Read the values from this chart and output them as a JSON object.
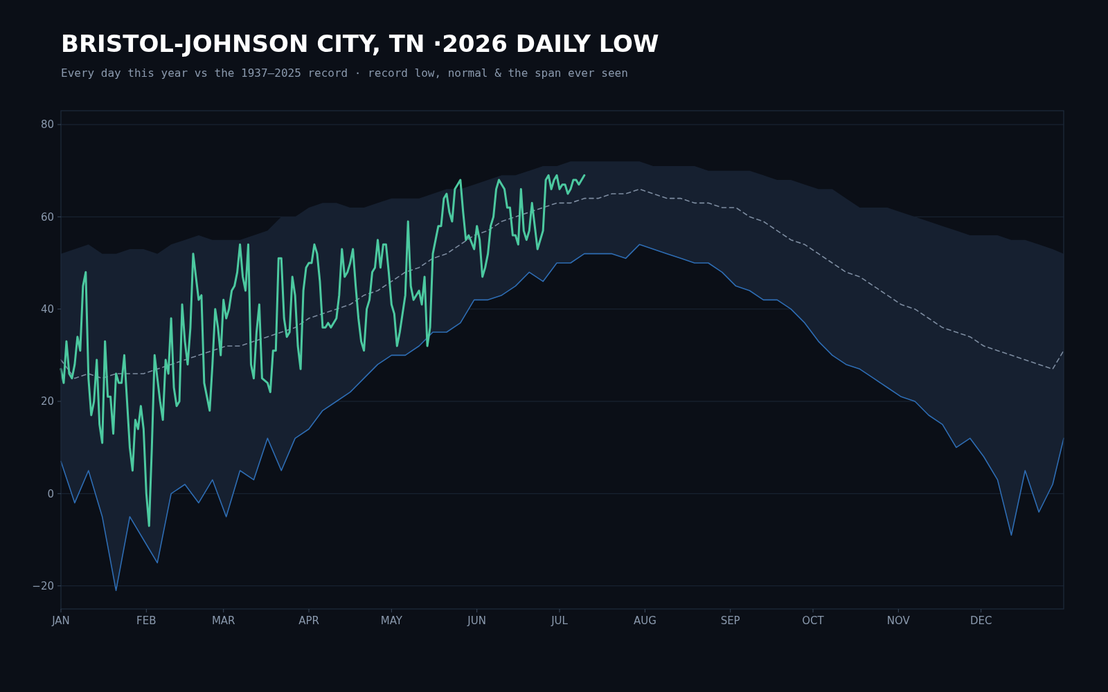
{
  "chart_data": {
    "type": "line",
    "title": "BRISTOL-JOHNSON CITY, TN ·2026 DAILY LOW",
    "subtitle": "Every day this year vs the 1937–2025 record · record low, normal & the span ever seen",
    "x": [
      "--01-01",
      "--01-06",
      "--01-11",
      "--01-16",
      "--01-21",
      "--01-26",
      "--01-31",
      "--02-05",
      "--02-10",
      "--02-15",
      "--02-20",
      "--02-25",
      "--03-02",
      "--03-07",
      "--03-12",
      "--03-17",
      "--03-22",
      "--03-27",
      "--04-01",
      "--04-06",
      "--04-11",
      "--04-16",
      "--04-21",
      "--04-26",
      "--05-01",
      "--05-06",
      "--05-11",
      "--05-16",
      "--05-21",
      "--05-26",
      "--05-31",
      "--06-05",
      "--06-10",
      "--06-15",
      "--06-20",
      "--06-25",
      "--06-30",
      "--07-05",
      "--07-10",
      "--07-15",
      "--07-20",
      "--07-25",
      "--07-30",
      "--08-04",
      "--08-09",
      "--08-14",
      "--08-19",
      "--08-24",
      "--08-29",
      "--09-03",
      "--09-08",
      "--09-13",
      "--09-18",
      "--09-23",
      "--09-28",
      "--10-03",
      "--10-08",
      "--10-13",
      "--10-18",
      "--10-23",
      "--10-28",
      "--11-02",
      "--11-07",
      "--11-12",
      "--11-17",
      "--11-22",
      "--11-27",
      "--12-02",
      "--12-07",
      "--12-12",
      "--12-17",
      "--12-22",
      "--12-27",
      "--12-31"
    ],
    "xlim": [
      "--01-01",
      "--12-31"
    ],
    "xticks": [
      {
        "value": "--01-01",
        "label": "JAN"
      },
      {
        "value": "--02-01",
        "label": "FEB"
      },
      {
        "value": "--03-01",
        "label": "MAR"
      },
      {
        "value": "--04-01",
        "label": "APR"
      },
      {
        "value": "--05-01",
        "label": "MAY"
      },
      {
        "value": "--06-01",
        "label": "JUN"
      },
      {
        "value": "--07-01",
        "label": "JUL"
      },
      {
        "value": "--08-01",
        "label": "AUG"
      },
      {
        "value": "--09-01",
        "label": "SEP"
      },
      {
        "value": "--10-01",
        "label": "OCT"
      },
      {
        "value": "--11-01",
        "label": "NOV"
      },
      {
        "value": "--12-01",
        "label": "DEC"
      }
    ],
    "ylim": [
      -25,
      83
    ],
    "yticks": [
      {
        "value": -20,
        "label": "−20"
      },
      0,
      20,
      40,
      60,
      80
    ],
    "grid": "y",
    "series": [
      {
        "line_style": "dashed",
        "color": "#7d8ca0",
        "values": [
          29,
          25,
          26,
          25,
          26,
          26,
          26,
          27,
          28,
          29,
          30,
          31,
          32,
          32,
          33,
          34,
          35,
          36,
          38,
          39,
          40,
          41,
          43,
          44,
          46,
          48,
          49,
          51,
          52,
          54,
          56,
          57,
          59,
          60,
          61,
          62,
          63,
          63,
          64,
          64,
          65,
          65,
          66,
          65,
          64,
          64,
          63,
          63,
          62,
          62,
          60,
          59,
          57,
          55,
          54,
          52,
          50,
          48,
          47,
          45,
          43,
          41,
          40,
          38,
          36,
          35,
          34,
          32,
          31,
          30,
          29,
          28,
          27,
          31
        ],
        "lower": [
          7,
          -2,
          5,
          -5,
          -21,
          -5,
          -10,
          -15,
          0,
          2,
          -2,
          3,
          -5,
          5,
          3,
          12,
          5,
          12,
          14,
          18,
          20,
          22,
          25,
          28,
          30,
          30,
          32,
          35,
          35,
          37,
          42,
          42,
          43,
          45,
          48,
          46,
          50,
          50,
          52,
          52,
          52,
          51,
          54,
          53,
          52,
          51,
          50,
          50,
          48,
          45,
          44,
          42,
          42,
          40,
          37,
          33,
          30,
          28,
          27,
          25,
          23,
          21,
          20,
          17,
          15,
          10,
          12,
          8,
          3,
          -9,
          5,
          -4,
          2,
          12
        ],
        "upper": [
          52,
          53,
          54,
          52,
          52,
          53,
          53,
          52,
          54,
          55,
          56,
          55,
          55,
          55,
          56,
          57,
          60,
          60,
          62,
          63,
          63,
          62,
          62,
          63,
          64,
          64,
          64,
          65,
          66,
          66,
          67,
          68,
          69,
          69,
          70,
          71,
          71,
          72,
          72,
          72,
          72,
          72,
          72,
          71,
          71,
          71,
          71,
          70,
          70,
          70,
          70,
          69,
          68,
          68,
          67,
          66,
          66,
          64,
          62,
          62,
          62,
          61,
          60,
          59,
          58,
          57,
          56,
          56,
          56,
          55,
          55,
          54,
          53,
          52
        ]
      },
      {
        "color": "#2e6db4",
        "values": [
          7,
          -2,
          5,
          -5,
          -21,
          -5,
          -10,
          -15,
          0,
          2,
          -2,
          3,
          -5,
          5,
          3,
          12,
          5,
          12,
          14,
          18,
          20,
          22,
          25,
          28,
          30,
          30,
          32,
          35,
          35,
          37,
          42,
          42,
          43,
          45,
          48,
          46,
          50,
          50,
          52,
          52,
          52,
          51,
          54,
          53,
          52,
          51,
          50,
          50,
          48,
          45,
          44,
          42,
          42,
          40,
          37,
          33,
          30,
          28,
          27,
          25,
          23,
          21,
          20,
          17,
          15,
          10,
          12,
          8,
          3,
          -9,
          5,
          -4,
          2,
          12
        ]
      },
      {
        "color": "#4cc9a0",
        "x": [
          "--01-01",
          "--01-02",
          "--01-03",
          "--01-04",
          "--01-05",
          "--01-06",
          "--01-07",
          "--01-08",
          "--01-09",
          "--01-10",
          "--01-11",
          "--01-12",
          "--01-13",
          "--01-14",
          "--01-15",
          "--01-16",
          "--01-17",
          "--01-18",
          "--01-19",
          "--01-20",
          "--01-21",
          "--01-22",
          "--01-23",
          "--01-24",
          "--01-26",
          "--01-27",
          "--01-28",
          "--01-29",
          "--01-30",
          "--01-31",
          "--02-01",
          "--02-02",
          "--02-03",
          "--02-04",
          "--02-05",
          "--02-06",
          "--02-07",
          "--02-08",
          "--02-09",
          "--02-10",
          "--02-11",
          "--02-12",
          "--02-13",
          "--02-14",
          "--02-15",
          "--02-16",
          "--02-17",
          "--02-18",
          "--02-20",
          "--02-21",
          "--02-22",
          "--02-23",
          "--02-24",
          "--02-25",
          "--02-26",
          "--02-27",
          "--02-28",
          "--03-01",
          "--03-02",
          "--03-03",
          "--03-04",
          "--03-05",
          "--03-06",
          "--03-07",
          "--03-08",
          "--03-09",
          "--03-10",
          "--03-11",
          "--03-12",
          "--03-13",
          "--03-14",
          "--03-15",
          "--03-17",
          "--03-18",
          "--03-19",
          "--03-20",
          "--03-21",
          "--03-22",
          "--03-23",
          "--03-24",
          "--03-25",
          "--03-26",
          "--03-27",
          "--03-28",
          "--03-29",
          "--03-30",
          "--03-31",
          "--04-01",
          "--04-02",
          "--04-03",
          "--04-04",
          "--04-05",
          "--04-06",
          "--04-07",
          "--04-08",
          "--04-09",
          "--04-11",
          "--04-12",
          "--04-13",
          "--04-14",
          "--04-15",
          "--04-16",
          "--04-17",
          "--04-18",
          "--04-19",
          "--04-20",
          "--04-21",
          "--04-22",
          "--04-23",
          "--04-24",
          "--04-25",
          "--04-26",
          "--04-27",
          "--04-28",
          "--04-29",
          "--04-30",
          "--05-01",
          "--05-02",
          "--05-03",
          "--05-04",
          "--05-06",
          "--05-07",
          "--05-08",
          "--05-09",
          "--05-10",
          "--05-11",
          "--05-12",
          "--05-13",
          "--05-14",
          "--05-15",
          "--05-16",
          "--05-17",
          "--05-18",
          "--05-19",
          "--05-20",
          "--05-21",
          "--05-22",
          "--05-23",
          "--05-24",
          "--05-25",
          "--05-26",
          "--05-27",
          "--05-28",
          "--05-29",
          "--05-31",
          "--06-01",
          "--06-02",
          "--06-03",
          "--06-04",
          "--06-05",
          "--06-06",
          "--06-07",
          "--06-08",
          "--06-09",
          "--06-10",
          "--06-11",
          "--06-12",
          "--06-13",
          "--06-14",
          "--06-15",
          "--06-16",
          "--06-17",
          "--06-18",
          "--06-19",
          "--06-20",
          "--06-21",
          "--06-22",
          "--06-23",
          "--06-25",
          "--06-26",
          "--06-27",
          "--06-28",
          "--06-29",
          "--06-30",
          "--07-01",
          "--07-02",
          "--07-03",
          "--07-04",
          "--07-05",
          "--07-06",
          "--07-07",
          "--07-08",
          "--07-09",
          "--07-10"
        ],
        "values": [
          27,
          24,
          33,
          26,
          25,
          28,
          34,
          31,
          45,
          48,
          25,
          17,
          20,
          29,
          15,
          11,
          33,
          21,
          21,
          13,
          26,
          24,
          24,
          30,
          10,
          5,
          16,
          14,
          19,
          14,
          0,
          -7,
          10,
          30,
          25,
          20,
          16,
          29,
          26,
          38,
          23,
          19,
          20,
          41,
          33,
          28,
          36,
          52,
          42,
          43,
          24,
          21,
          18,
          28,
          40,
          36,
          30,
          42,
          38,
          40,
          44,
          45,
          48,
          54,
          47,
          44,
          54,
          28,
          25,
          35,
          41,
          25,
          24,
          22,
          31,
          31,
          51,
          51,
          38,
          34,
          35,
          47,
          43,
          32,
          27,
          44,
          49,
          50,
          50,
          54,
          52,
          46,
          36,
          36,
          37,
          36,
          38,
          43,
          53,
          47,
          48,
          50,
          53,
          45,
          38,
          33,
          31,
          40,
          42,
          48,
          49,
          55,
          49,
          54,
          54,
          48,
          41,
          39,
          32,
          35,
          43,
          59,
          45,
          42,
          43,
          44,
          41,
          47,
          32,
          36,
          52,
          55,
          58,
          58,
          64,
          65,
          61,
          59,
          66,
          67,
          68,
          61,
          55,
          56,
          53,
          58,
          55,
          47,
          49,
          52,
          58,
          60,
          66,
          68,
          67,
          66,
          62,
          62,
          56,
          56,
          54,
          66,
          57,
          55,
          57,
          63,
          58,
          53,
          57,
          68,
          69,
          66,
          68,
          69,
          66,
          67,
          67,
          65,
          66,
          68,
          68,
          67,
          68,
          69
        ]
      }
    ]
  }
}
